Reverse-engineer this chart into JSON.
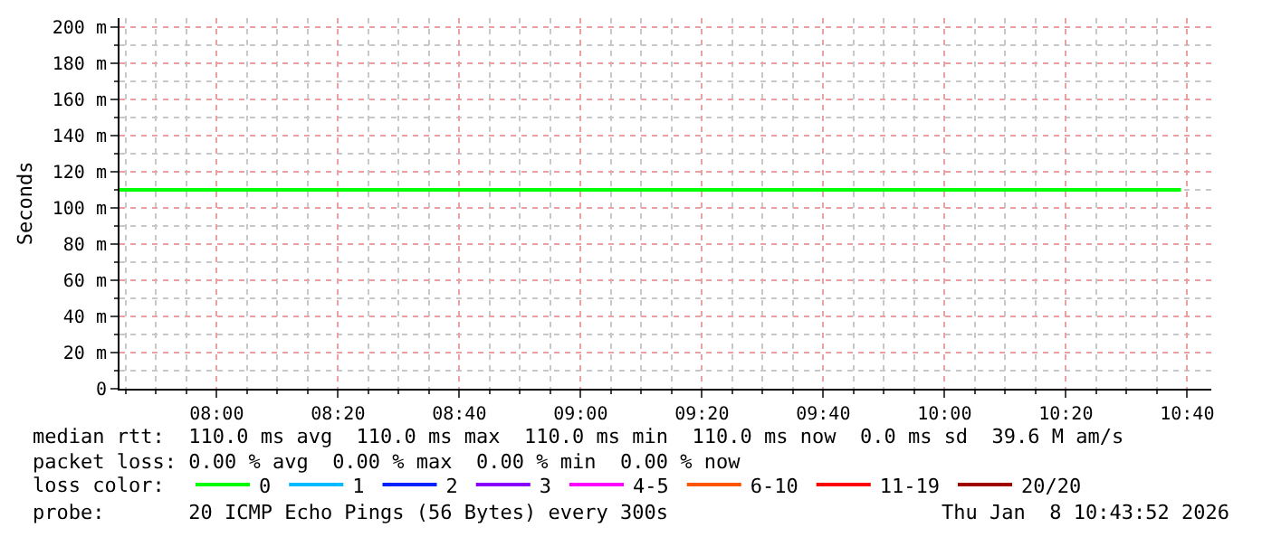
{
  "chart_data": {
    "type": "line",
    "ylabel": "Seconds",
    "x": [
      7.733,
      10.65
    ],
    "series": [
      {
        "name": "0",
        "color": "#00ff00",
        "values": [
          110,
          110
        ]
      },
      {
        "name": "1",
        "color": "#00bbff",
        "values": [
          null,
          null
        ]
      },
      {
        "name": "2",
        "color": "#0022ff",
        "values": [
          null,
          null
        ]
      },
      {
        "name": "3",
        "color": "#8a00ff",
        "values": [
          null,
          null
        ]
      },
      {
        "name": "4-5",
        "color": "#ff00ff",
        "values": [
          null,
          null
        ]
      },
      {
        "name": "6-10",
        "color": "#ff5500",
        "values": [
          null,
          null
        ]
      },
      {
        "name": "11-19",
        "color": "#ff0000",
        "values": [
          null,
          null
        ]
      },
      {
        "name": "20/20",
        "color": "#a10000",
        "values": [
          null,
          null
        ]
      }
    ],
    "xlim": [
      7.733,
      10.733
    ],
    "xticks": [
      {
        "value": 8,
        "label": "08:00"
      },
      {
        "value": 8.3333,
        "label": "08:20"
      },
      {
        "value": 8.6667,
        "label": "08:40"
      },
      {
        "value": 9,
        "label": "09:00"
      },
      {
        "value": 9.3333,
        "label": "09:20"
      },
      {
        "value": 9.6667,
        "label": "09:40"
      },
      {
        "value": 10,
        "label": "10:00"
      },
      {
        "value": 10.3333,
        "label": "10:20"
      },
      {
        "value": 10.6667,
        "label": "10:40"
      }
    ],
    "ylim": [
      0,
      205
    ],
    "yticks": [
      {
        "value": 0,
        "label": "0"
      },
      {
        "value": 20,
        "label": "20 m"
      },
      {
        "value": 40,
        "label": "40 m"
      },
      {
        "value": 60,
        "label": "60 m"
      },
      {
        "value": 80,
        "label": "80 m"
      },
      {
        "value": 100,
        "label": "100 m"
      },
      {
        "value": 120,
        "label": "120 m"
      },
      {
        "value": 140,
        "label": "140 m"
      },
      {
        "value": 160,
        "label": "160 m"
      },
      {
        "value": 180,
        "label": "180 m"
      },
      {
        "value": 200,
        "label": "200 m"
      }
    ],
    "grid": true,
    "legend": "bottom",
    "marker": "none",
    "line_style": "solid",
    "annotations": [
      "median rtt:  110.0 ms avg  110.0 ms max  110.0 ms min  110.0 ms now  0.0 ms sd  39.6 M am/s",
      "packet loss: 0.00 % avg  0.00 % max  0.00 % min  0.00 % now",
      "loss color:",
      "probe:       20 ICMP Echo Pings (56 Bytes) every 300s",
      "Thu Jan  8 10:43:52 2026"
    ]
  }
}
